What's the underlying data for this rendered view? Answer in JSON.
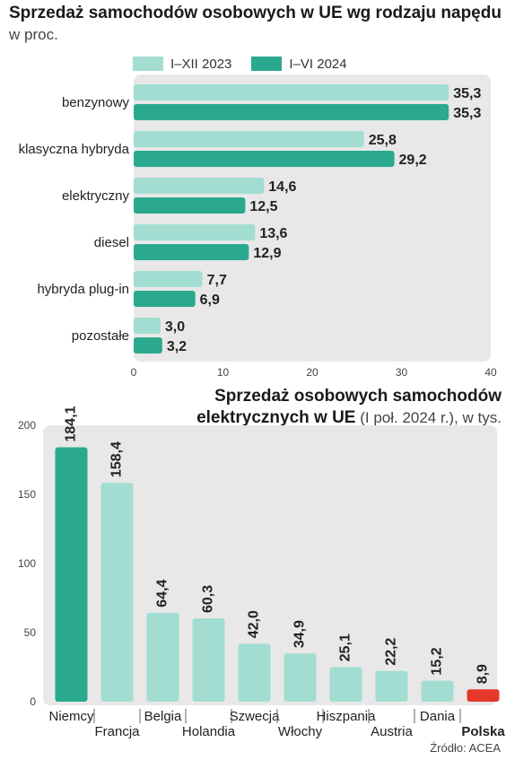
{
  "header": {
    "title": "Sprzedaż samochodów osobowych w UE wg rodzaju napędu",
    "subtitle": "w proc."
  },
  "colors": {
    "light": "#a3ddd1",
    "dark": "#2aa98e",
    "highlight": "#e5382b",
    "panel": "#e8e8e8"
  },
  "chart2_title": {
    "bold": "Sprzedaż osobowych samochodów",
    "line2_bold": "elektrycznych w UE",
    "line2_rest": " (I poł. 2024 r.), w tys."
  },
  "source": "Źródło: ACEA",
  "chart_data": [
    {
      "type": "bar",
      "orientation": "horizontal",
      "title": "Sprzedaż samochodów osobowych w UE wg rodzaju napędu",
      "subtitle": "w proc.",
      "categories": [
        "benzynowy",
        "klasyczna hybryda",
        "elektryczny",
        "diesel",
        "hybryda plug-in",
        "pozostałe"
      ],
      "series": [
        {
          "name": "I–XII 2023",
          "values": [
            35.3,
            25.8,
            14.6,
            13.6,
            7.7,
            3.0
          ],
          "labels": [
            "35,3",
            "25,8",
            "14,6",
            "13,6",
            "7,7",
            "3,0"
          ]
        },
        {
          "name": "I–VI 2024",
          "values": [
            35.3,
            29.2,
            12.5,
            12.9,
            6.9,
            3.2
          ],
          "labels": [
            "35,3",
            "29,2",
            "12,5",
            "12,9",
            "6,9",
            "3,2"
          ]
        }
      ],
      "xlim": [
        0,
        40
      ],
      "xticks": [
        0,
        10,
        20,
        30,
        40
      ],
      "legend": "top"
    },
    {
      "type": "bar",
      "orientation": "vertical",
      "title": "Sprzedaż osobowych samochodów elektrycznych w UE (I poł. 2024 r.), w tys.",
      "categories": [
        "Niemcy",
        "Francja",
        "Belgia",
        "Holandia",
        "Szwecja",
        "Włochy",
        "Hiszpania",
        "Austria",
        "Dania",
        "Polska"
      ],
      "values": [
        184.1,
        158.4,
        64.4,
        60.3,
        42.0,
        34.9,
        25.1,
        22.2,
        15.2,
        8.9
      ],
      "labels": [
        "184,1",
        "158,4",
        "64,4",
        "60,3",
        "42,0",
        "34,9",
        "25,1",
        "22,2",
        "15,2",
        "8,9"
      ],
      "bar_colors": [
        "dark",
        "light",
        "light",
        "light",
        "light",
        "light",
        "light",
        "light",
        "light",
        "highlight"
      ],
      "ylim": [
        0,
        200
      ],
      "yticks": [
        0,
        50,
        100,
        150,
        200
      ]
    }
  ]
}
